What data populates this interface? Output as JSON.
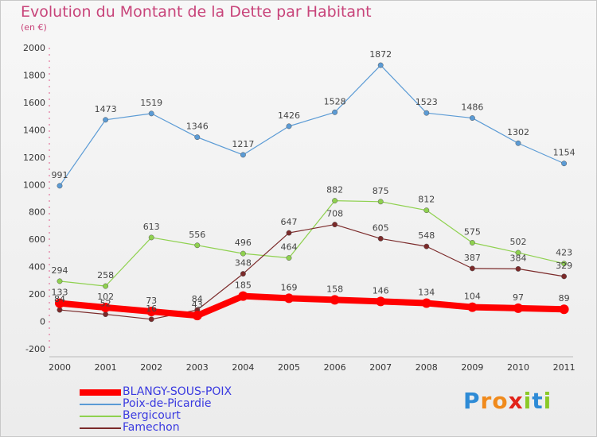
{
  "title": "Evolution du Montant de la Dette par Habitant",
  "unit": "(en €)",
  "logo": {
    "letters": [
      "P",
      "r",
      "o",
      "x",
      "i",
      "t",
      "i"
    ],
    "colors": [
      "#2e8bd6",
      "#f08a1c",
      "#f08a1c",
      "#e2231a",
      "#8ac926",
      "#2e8bd6",
      "#8ac926"
    ]
  },
  "chart_data": {
    "type": "line",
    "title": "Evolution du Montant de la Dette par Habitant",
    "ylabel": "(en €)",
    "xlabel": "",
    "x": [
      "2000",
      "2001",
      "2002",
      "2003",
      "2004",
      "2005",
      "2006",
      "2007",
      "2008",
      "2009",
      "2010",
      "2011"
    ],
    "ylim": [
      -200,
      2000
    ],
    "yticks": [
      -200,
      0,
      200,
      400,
      600,
      800,
      1000,
      1200,
      1400,
      1600,
      1800,
      2000
    ],
    "grid": false,
    "legend": "bottom-left",
    "series": [
      {
        "name": "BLANGY-SOUS-POIX",
        "color": "#ff0000",
        "values": [
          133,
          102,
          73,
          43,
          185,
          169,
          158,
          146,
          134,
          104,
          97,
          89
        ]
      },
      {
        "name": "Poix-de-Picardie",
        "color": "#5b9bd5",
        "values": [
          991,
          1473,
          1519,
          1346,
          1217,
          1426,
          1528,
          1872,
          1523,
          1486,
          1302,
          1154
        ]
      },
      {
        "name": "Bergicourt",
        "color": "#8fd14f",
        "values": [
          294,
          258,
          613,
          556,
          496,
          464,
          882,
          875,
          812,
          575,
          502,
          423
        ]
      },
      {
        "name": "Famechon",
        "color": "#7b2a2a",
        "values": [
          84,
          52,
          16,
          84,
          348,
          647,
          708,
          605,
          548,
          387,
          384,
          329
        ]
      }
    ]
  }
}
